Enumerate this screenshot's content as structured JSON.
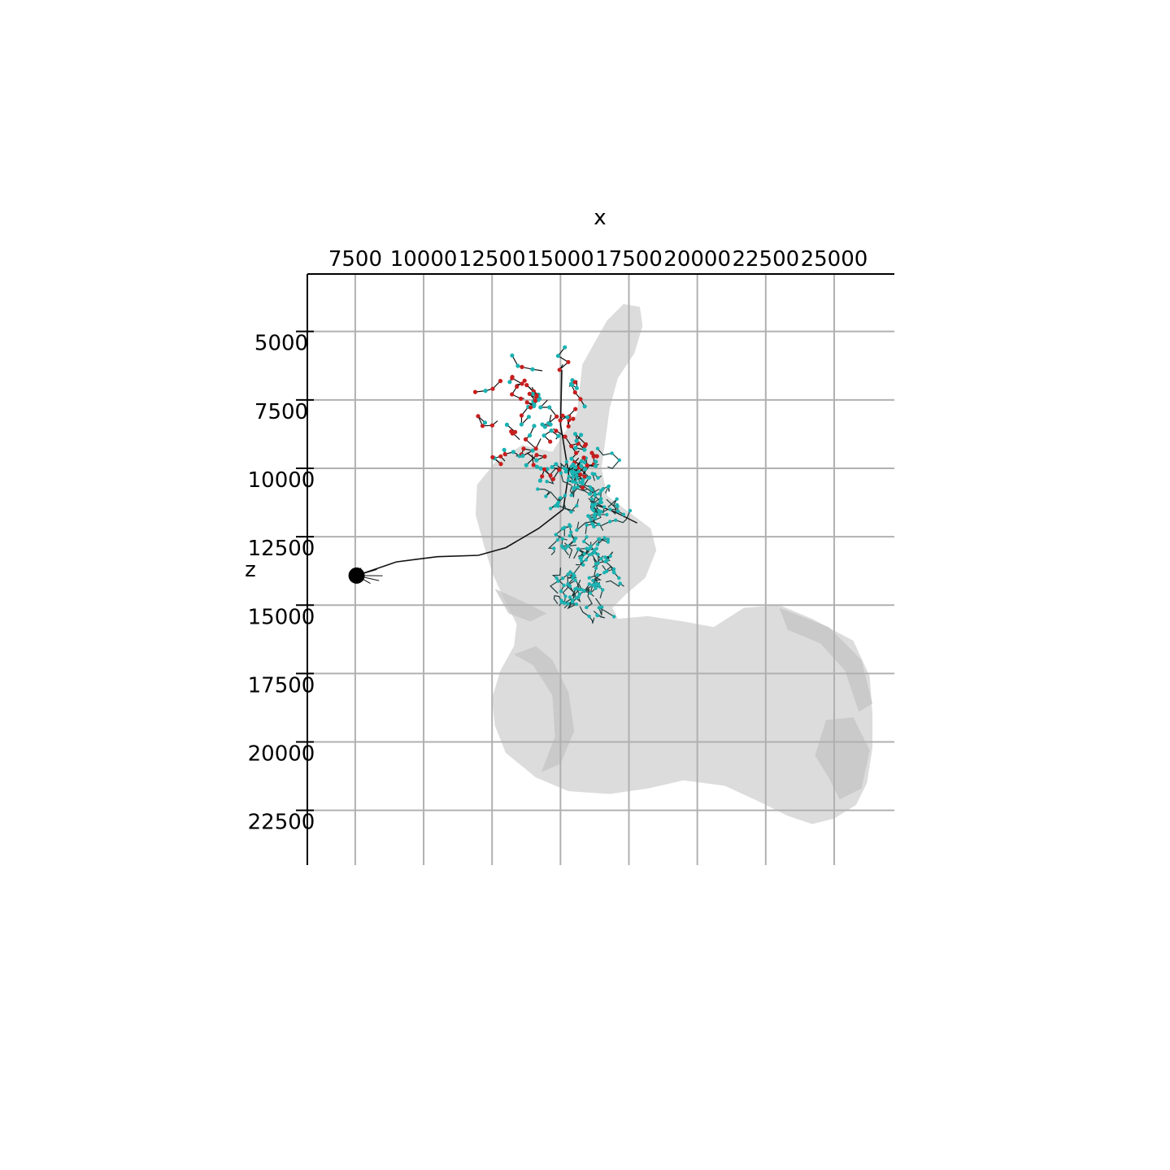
{
  "chart_data": {
    "type": "scatter",
    "xlabel": "x",
    "ylabel": "z",
    "xlim": [
      5750,
      27200
    ],
    "ylim": [
      2900,
      24500
    ],
    "y_inverted": true,
    "x_axis_position": "top",
    "grid": true,
    "x_ticks": [
      7500,
      10000,
      12500,
      15000,
      17500,
      20000,
      22500,
      25000
    ],
    "y_ticks": [
      5000,
      7500,
      10000,
      12500,
      15000,
      17500,
      20000,
      22500
    ],
    "x_tick_labels": [
      "7500",
      "10000",
      "12500",
      "15000",
      "17500",
      "20000",
      "22500",
      "25000"
    ],
    "y_tick_labels": [
      "5000",
      "7500",
      "10000",
      "12500",
      "15000",
      "17500",
      "20000",
      "22500"
    ],
    "colors": {
      "mesh": "#dcdcdc",
      "mesh_shadow": "#c4c4c4",
      "neuron": "#111111",
      "postsynapse": "#1ab2b2",
      "presynapse": "#c81e1e",
      "grid": "#b0b0b0"
    },
    "soma": {
      "x": 7550,
      "y": 13920
    },
    "series": [
      {
        "marker": "soma",
        "points": [
          [
            7550,
            13920
          ]
        ]
      },
      {
        "marker": "backbone",
        "points": [
          [
            7550,
            13920
          ],
          [
            9000,
            13420
          ],
          [
            10500,
            13230
          ],
          [
            12000,
            13180
          ],
          [
            13000,
            12900
          ],
          [
            14200,
            12200
          ],
          [
            15100,
            11500
          ],
          [
            15300,
            10200
          ],
          [
            15000,
            8400
          ],
          [
            15050,
            6400
          ]
        ]
      }
    ]
  },
  "axes": {
    "x_title": "x",
    "y_title": "z"
  }
}
